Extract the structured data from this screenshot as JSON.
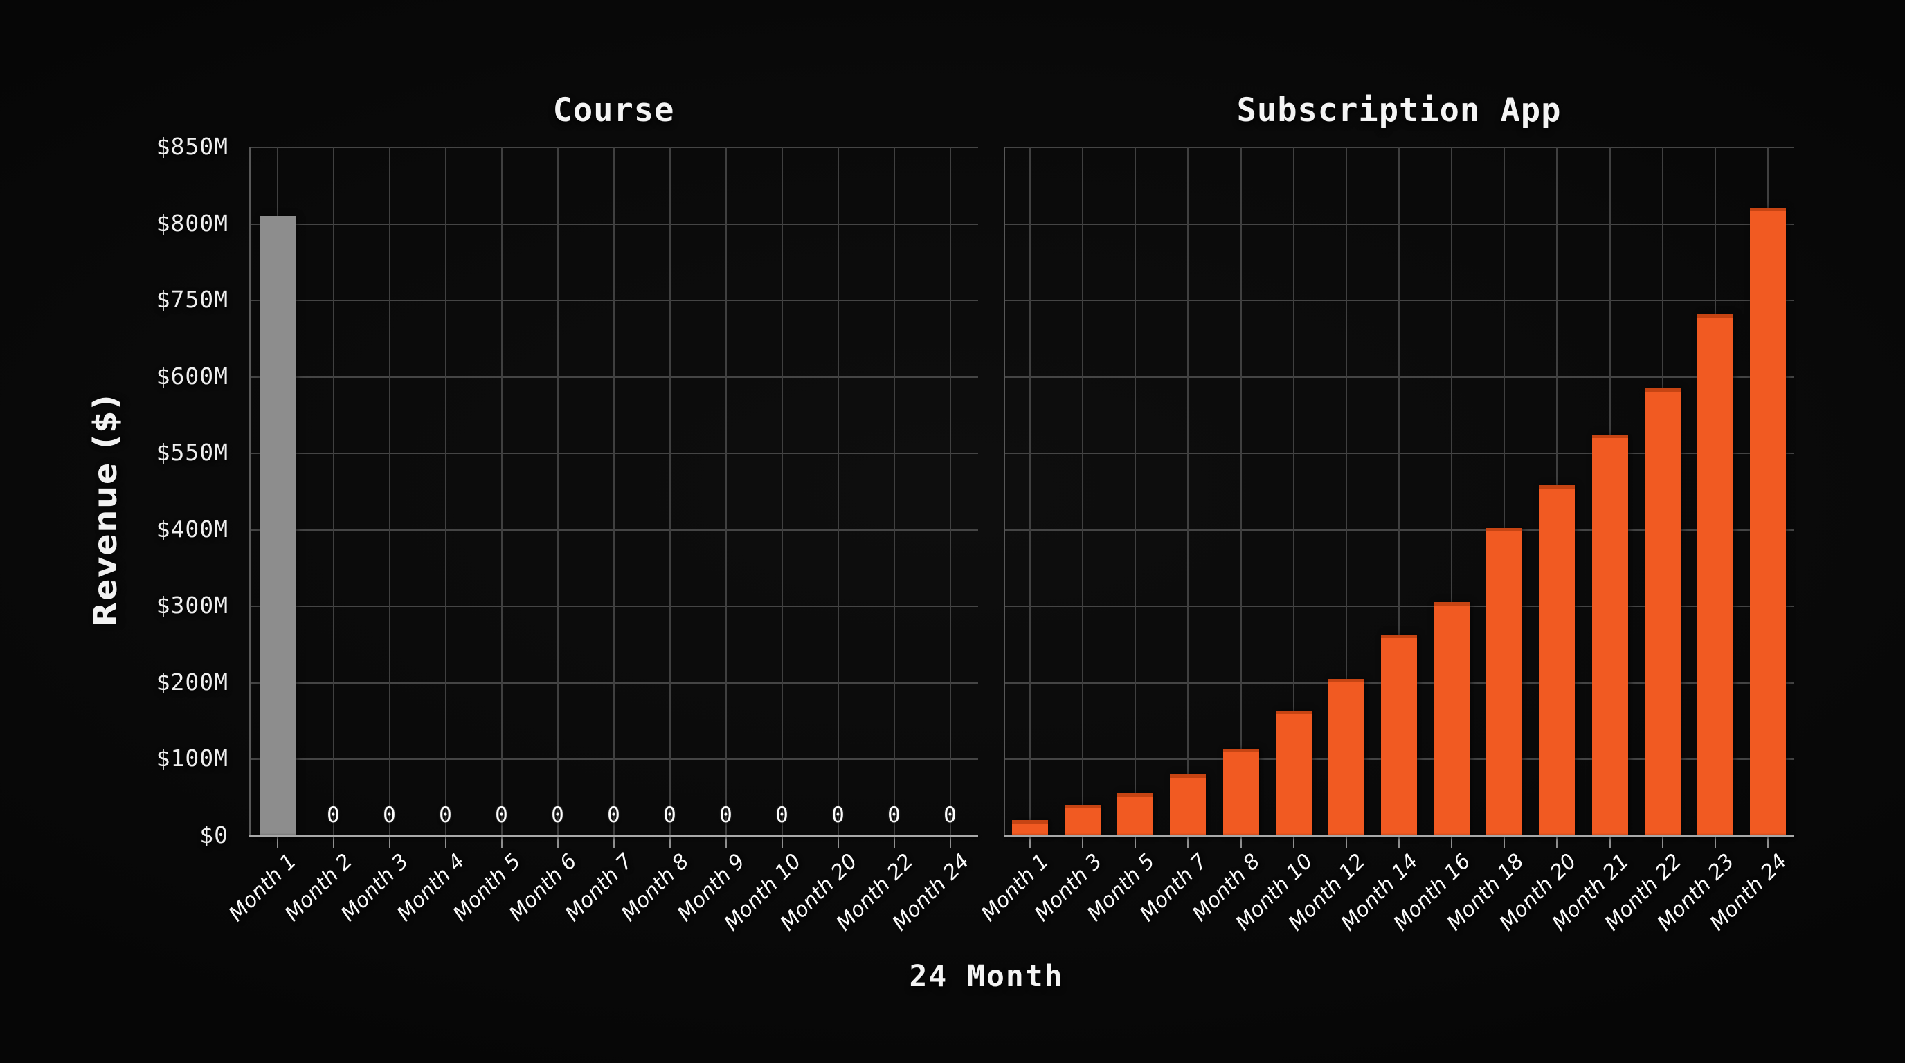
{
  "colors": {
    "background": "#0a0a0a",
    "grid": "#454545",
    "axis_line": "#a8a8a8",
    "text": "#f4f4f4",
    "course_bar": "#8d8d8d",
    "subscription_bar": "#f15a22",
    "subscription_bar_edge": "#c64413"
  },
  "y_axis": {
    "title": "Revenue ($)",
    "tick_labels_top_to_bottom": [
      "$850M",
      "$800M",
      "$750M",
      "$600M",
      "$550M",
      "$400M",
      "$300M",
      "$200M",
      "$100M",
      "$0"
    ],
    "tick_values_bottom_to_top": [
      0,
      100,
      200,
      300,
      400,
      550,
      600,
      750,
      800,
      850
    ],
    "spacing": "uniform"
  },
  "x_axis": {
    "title": "24 Month"
  },
  "chart_data": [
    {
      "type": "bar",
      "title": "Course",
      "bar_color_key": "course_bar",
      "categories": [
        "Month 1",
        "Month 2",
        "Month 3",
        "Month 4",
        "Month 5",
        "Month 6",
        "Month 7",
        "Month 8",
        "Month 9",
        "Month 10",
        "Month 20",
        "Month 22",
        "Month 24"
      ],
      "values": [
        805,
        0,
        0,
        0,
        0,
        0,
        0,
        0,
        0,
        0,
        0,
        0,
        0
      ],
      "zero_value_labels": true,
      "ylim": [
        0,
        850
      ],
      "unit": "$M"
    },
    {
      "type": "bar",
      "title": "Subscription App",
      "bar_color_key": "subscription_bar",
      "categories": [
        "Month 1",
        "Month 3",
        "Month 5",
        "Month 7",
        "Month 8",
        "Month 10",
        "Month 12",
        "Month 14",
        "Month 16",
        "Month 18",
        "Month 20",
        "Month 21",
        "Month 22",
        "Month 23",
        "Month 24"
      ],
      "values": [
        20,
        40,
        55,
        80,
        113,
        163,
        204,
        262,
        305,
        403,
        486,
        562,
        592,
        722,
        810
      ],
      "zero_value_labels": false,
      "ylim": [
        0,
        850
      ],
      "unit": "$M"
    }
  ]
}
